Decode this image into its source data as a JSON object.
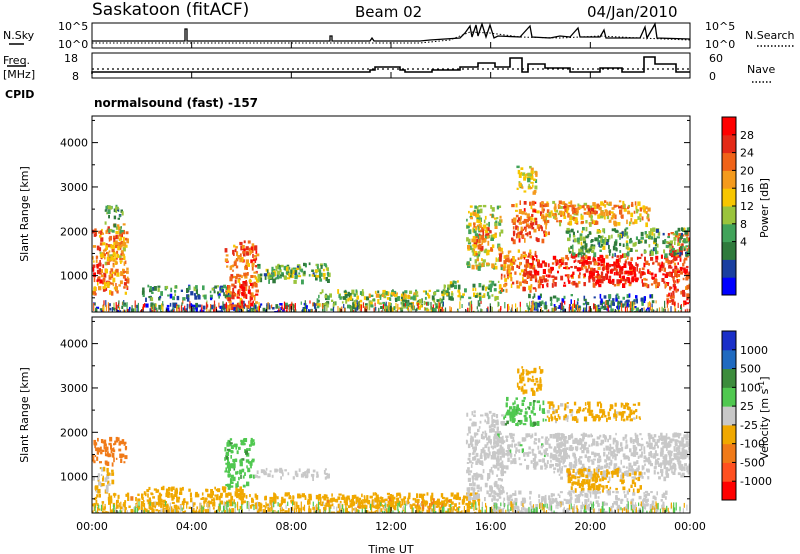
{
  "header": {
    "station": "Saskatoon (fitACF)",
    "beam": "Beam 02",
    "date": "04/Jan/2010"
  },
  "top_panels": {
    "nsky_label": "N.Sky",
    "nsky_ticks": [
      "10^5",
      "10^0"
    ],
    "nsearch_label": "N.Search",
    "nsearch_ticks": [
      "10^5",
      "10^0"
    ],
    "freq_label_1": "Freq.",
    "freq_label_2": "[MHz]",
    "freq_ticks": [
      "18",
      "8"
    ],
    "nave_label": "Nave",
    "nave_ticks": [
      "60",
      "0"
    ],
    "cpid_label": "CPID",
    "cpid_text": "normalsound (fast) -157"
  },
  "chart_data": [
    {
      "type": "heatmap",
      "name": "power",
      "ylabel": "Slant Range [km]",
      "yticks": [
        "4000",
        "3000",
        "2000",
        "1000"
      ],
      "ylim": [
        180,
        4600
      ],
      "xlim": [
        0,
        24
      ],
      "colorbar_label": "Power [dB]",
      "colorbar_ticks": [
        "28",
        "24",
        "20",
        "16",
        "12",
        "8",
        "4"
      ],
      "colorbar_colors": [
        "#0000ff",
        "#1a3fa0",
        "#2f7a3c",
        "#41a35a",
        "#9ac43c",
        "#f7c600",
        "#f49a1c",
        "#f06318",
        "#e42a17",
        "#ff0000"
      ],
      "regions": [
        {
          "t0": 0.0,
          "t1": 1.4,
          "r0": 600,
          "r1": 2200,
          "level": 0.7
        },
        {
          "t0": 0.0,
          "t1": 0.3,
          "r0": 900,
          "r1": 1300,
          "level": 0.9
        },
        {
          "t0": 0.3,
          "t1": 1.3,
          "r0": 1300,
          "r1": 1800,
          "level": 0.6
        },
        {
          "t0": 0.5,
          "t1": 1.2,
          "r0": 2000,
          "r1": 2600,
          "level": 0.3
        },
        {
          "t0": 0.0,
          "t1": 9.0,
          "r0": 200,
          "r1": 400,
          "level": 0.15
        },
        {
          "t0": 2.0,
          "t1": 5.5,
          "r0": 500,
          "r1": 800,
          "level": 0.25
        },
        {
          "t0": 5.3,
          "t1": 6.6,
          "r0": 300,
          "r1": 1800,
          "level": 0.75
        },
        {
          "t0": 5.8,
          "t1": 6.4,
          "r0": 350,
          "r1": 900,
          "level": 0.95
        },
        {
          "t0": 6.5,
          "t1": 9.5,
          "r0": 900,
          "r1": 1300,
          "level": 0.35
        },
        {
          "t0": 7.0,
          "t1": 9.0,
          "r0": 1000,
          "r1": 1200,
          "level": 0.45
        },
        {
          "t0": 9.0,
          "t1": 14.0,
          "r0": 250,
          "r1": 700,
          "level": 0.4
        },
        {
          "t0": 11.0,
          "t1": 13.0,
          "r0": 500,
          "r1": 700,
          "level": 0.55
        },
        {
          "t0": 14.0,
          "t1": 16.5,
          "r0": 500,
          "r1": 900,
          "level": 0.4
        },
        {
          "t0": 15.0,
          "t1": 16.4,
          "r0": 1200,
          "r1": 2600,
          "level": 0.5
        },
        {
          "t0": 15.3,
          "t1": 16.0,
          "r0": 1500,
          "r1": 2200,
          "level": 0.7
        },
        {
          "t0": 16.3,
          "t1": 17.8,
          "r0": 700,
          "r1": 1600,
          "level": 0.7
        },
        {
          "t0": 16.8,
          "t1": 18.3,
          "r0": 1800,
          "r1": 2700,
          "level": 0.75
        },
        {
          "t0": 17.0,
          "t1": 17.8,
          "r0": 2900,
          "r1": 3500,
          "level": 0.5
        },
        {
          "t0": 18.0,
          "t1": 22.3,
          "r0": 2200,
          "r1": 2700,
          "level": 0.6
        },
        {
          "t0": 18.5,
          "t1": 21.5,
          "r0": 2400,
          "r1": 2600,
          "level": 0.7
        },
        {
          "t0": 17.3,
          "t1": 23.5,
          "r0": 800,
          "r1": 1500,
          "level": 0.85
        },
        {
          "t0": 20.0,
          "t1": 22.0,
          "r0": 900,
          "r1": 1300,
          "level": 0.95
        },
        {
          "t0": 23.0,
          "t1": 24.0,
          "r0": 400,
          "r1": 2000,
          "level": 0.85
        },
        {
          "t0": 19.0,
          "t1": 24.0,
          "r0": 1500,
          "r1": 2100,
          "level": 0.35
        },
        {
          "t0": 17.5,
          "t1": 22.5,
          "r0": 200,
          "r1": 600,
          "level": 0.2
        }
      ]
    },
    {
      "type": "heatmap",
      "name": "velocity",
      "ylabel": "Slant Range [km]",
      "yticks": [
        "4000",
        "3000",
        "2000",
        "1000"
      ],
      "ylim": [
        180,
        4600
      ],
      "xlim": [
        0,
        24
      ],
      "xlabel": "Time UT",
      "xticks": [
        "00:00",
        "04:00",
        "08:00",
        "12:00",
        "16:00",
        "20:00",
        "00:00"
      ],
      "colorbar_label": "Velocity [m s-1]",
      "colorbar_ticks": [
        "1000",
        "500",
        "100",
        "25",
        "-25",
        "-100",
        "-500",
        "-1000"
      ],
      "colorbar_colors": [
        "#1a2fc8",
        "#1f6ac0",
        "#3c8c3c",
        "#50c850",
        "#c8c8c8",
        "#f0a800",
        "#f07a18",
        "#ff5020",
        "#ff0000"
      ],
      "regions": [
        {
          "t0": 0.0,
          "t1": 1.4,
          "r0": 1300,
          "r1": 1900,
          "level": -250
        },
        {
          "t0": 0.0,
          "t1": 0.8,
          "r0": 700,
          "r1": 1300,
          "level": -20
        },
        {
          "t0": 5.3,
          "t1": 6.5,
          "r0": 800,
          "r1": 1900,
          "level": 80
        },
        {
          "t0": 6.5,
          "t1": 9.5,
          "r0": 1000,
          "r1": 1200,
          "level": 0
        },
        {
          "t0": 2.0,
          "t1": 6.0,
          "r0": 600,
          "r1": 800,
          "level": -60
        },
        {
          "t0": 0.0,
          "t1": 15.5,
          "r0": 200,
          "r1": 650,
          "level": -70
        },
        {
          "t0": 9.0,
          "t1": 15.0,
          "r0": 350,
          "r1": 550,
          "level": -80
        },
        {
          "t0": 15.0,
          "t1": 16.5,
          "r0": 500,
          "r1": 2500,
          "level": 0
        },
        {
          "t0": 16.5,
          "t1": 18.2,
          "r0": 2200,
          "r1": 2800,
          "level": 80
        },
        {
          "t0": 17.0,
          "t1": 18.0,
          "r0": 2900,
          "r1": 3500,
          "level": -60
        },
        {
          "t0": 18.2,
          "t1": 22.0,
          "r0": 2300,
          "r1": 2700,
          "level": -40
        },
        {
          "t0": 18.5,
          "t1": 24.0,
          "r0": 1000,
          "r1": 2000,
          "level": 0
        },
        {
          "t0": 16.0,
          "t1": 19.0,
          "r0": 1200,
          "r1": 2000,
          "level": 10
        },
        {
          "t0": 19.0,
          "t1": 22.0,
          "r0": 700,
          "r1": 1200,
          "level": -70
        },
        {
          "t0": 22.5,
          "t1": 24.0,
          "r0": 1200,
          "r1": 2000,
          "level": 0
        },
        {
          "t0": 16.0,
          "t1": 23.0,
          "r0": 200,
          "r1": 700,
          "level": 0
        }
      ]
    }
  ]
}
